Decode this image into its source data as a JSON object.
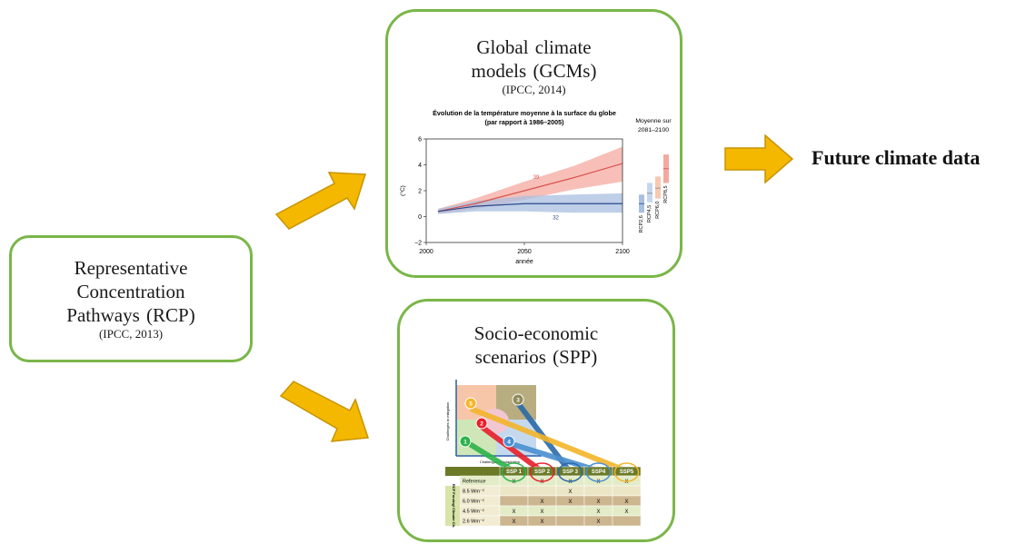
{
  "rcp": {
    "lines": [
      "Representative",
      "Concentration",
      "Pathways (RCP)"
    ],
    "citation": "(IPCC, 2013)"
  },
  "gcm": {
    "lines": [
      "Global climate",
      "models (GCMs)"
    ],
    "citation": "(IPCC, 2014)"
  },
  "ssp": {
    "lines": [
      "Socio-economic",
      "scenarios (SPP)"
    ]
  },
  "output": {
    "label": "Future climate data"
  },
  "colors": {
    "box_border": "#7ab648",
    "arrow_fill": "#f5b800",
    "arrow_stroke": "#c79400"
  },
  "chart_data": {
    "type": "line",
    "title": "Évolution de la température moyenne à la surface du globe",
    "subtitle": "(par rapport à 1986–2005)",
    "ylabel": "(°C)",
    "xlabel": "année",
    "xlim": [
      2000,
      2100
    ],
    "ylim": [
      -2,
      6
    ],
    "xticks": [
      "2000",
      "2050",
      "2100"
    ],
    "yticks": [
      "6",
      "4",
      "2",
      "0",
      "−2"
    ],
    "series": [
      {
        "name": "RCP8,5",
        "count_label": "39",
        "color": "#d9534f",
        "band_color": "#f4a9a0",
        "x": [
          2006,
          2025,
          2050,
          2075,
          2100
        ],
        "y": [
          0.4,
          1.0,
          2.0,
          3.0,
          4.1
        ],
        "lower": [
          0.2,
          0.6,
          1.3,
          2.1,
          2.7
        ],
        "upper": [
          0.6,
          1.4,
          2.7,
          3.9,
          5.4
        ]
      },
      {
        "name": "RCP2,6",
        "count_label": "32",
        "color": "#2b4a8a",
        "band_color": "#a9bfe0",
        "x": [
          2006,
          2025,
          2050,
          2075,
          2100
        ],
        "y": [
          0.4,
          0.8,
          1.0,
          1.0,
          1.0
        ],
        "lower": [
          0.2,
          0.4,
          0.4,
          0.3,
          0.3
        ],
        "upper": [
          0.6,
          1.2,
          1.6,
          1.7,
          1.8
        ]
      }
    ],
    "side_panel": {
      "title_lines": [
        "Moyenne sur",
        "2081–2100"
      ],
      "bars": [
        {
          "name": "RCP2,6",
          "low": 0.3,
          "mid": 1.0,
          "high": 1.7,
          "color": "#a9bfe0"
        },
        {
          "name": "RCP4,5",
          "low": 1.1,
          "mid": 1.8,
          "high": 2.6,
          "color": "#c5d6ee"
        },
        {
          "name": "RCP6,0",
          "low": 1.4,
          "mid": 2.2,
          "high": 3.1,
          "color": "#f7c9b0"
        },
        {
          "name": "RCP8,5",
          "low": 2.6,
          "mid": 3.7,
          "high": 4.8,
          "color": "#f4a9a0"
        }
      ]
    }
  },
  "ssp_matrix": {
    "axis_y": "Challenges to mitigation",
    "axis_x": "Challenges to adaptation",
    "nodes": [
      "1",
      "2",
      "3",
      "4",
      "5"
    ],
    "columns": [
      "SSP 1",
      "SSP 2",
      "SSP 3",
      "SSP4",
      "SSP5"
    ],
    "side_label": "RCP Forcing/ Climate Ch.",
    "rows": [
      {
        "label": "Reference",
        "cells": [
          "X",
          "X",
          "X",
          "X",
          "X"
        ]
      },
      {
        "label": "8.5 Wm⁻²",
        "cells": [
          "",
          "",
          "X",
          "",
          ""
        ]
      },
      {
        "label": "6.0 Wm⁻²",
        "cells": [
          "",
          "X",
          "X",
          "X",
          "X"
        ]
      },
      {
        "label": "4.5 Wm⁻²",
        "cells": [
          "X",
          "X",
          "",
          "X",
          "X"
        ]
      },
      {
        "label": "2.6 Wm⁻²",
        "cells": [
          "X",
          "X",
          "",
          "X",
          ""
        ]
      }
    ]
  }
}
